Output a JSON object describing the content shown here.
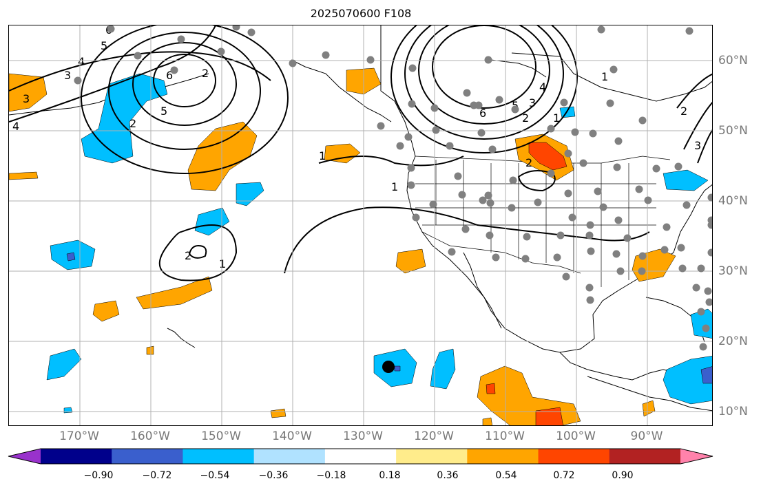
{
  "title": "2025070600 F108",
  "lon_labels": [
    "170°W",
    "160°W",
    "150°W",
    "140°W",
    "130°W",
    "120°W",
    "110°W",
    "100°W",
    "90°W"
  ],
  "lat_labels": [
    "60°N",
    "50°N",
    "40°N",
    "30°N",
    "20°N",
    "10°N"
  ],
  "contour_labels": [
    "6",
    "5",
    "4",
    "3",
    "3",
    "4",
    "5",
    "6",
    "2",
    "1",
    "1",
    "2",
    "1",
    "2",
    "5",
    "4",
    "3",
    "2",
    "6",
    "1",
    "2",
    "1",
    "2",
    "3"
  ],
  "colorbar": {
    "ticks": [
      "−0.90",
      "−0.72",
      "−0.54",
      "−0.36",
      "−0.18",
      "0.18",
      "0.36",
      "0.54",
      "0.72",
      "0.90"
    ],
    "colors": [
      "#9932cc",
      "#00008b",
      "#3a5fcd",
      "#00bfff",
      "#b0e2ff",
      "#ffffff",
      "#ffec8b",
      "#ffa500",
      "#ff4500",
      "#b22222",
      "#ff82ab"
    ]
  },
  "colors": {
    "land_outline": "#000000",
    "contour": "#000000",
    "station_dot": "#808080",
    "marker": "#000000",
    "grid": "#b0b0b0"
  }
}
